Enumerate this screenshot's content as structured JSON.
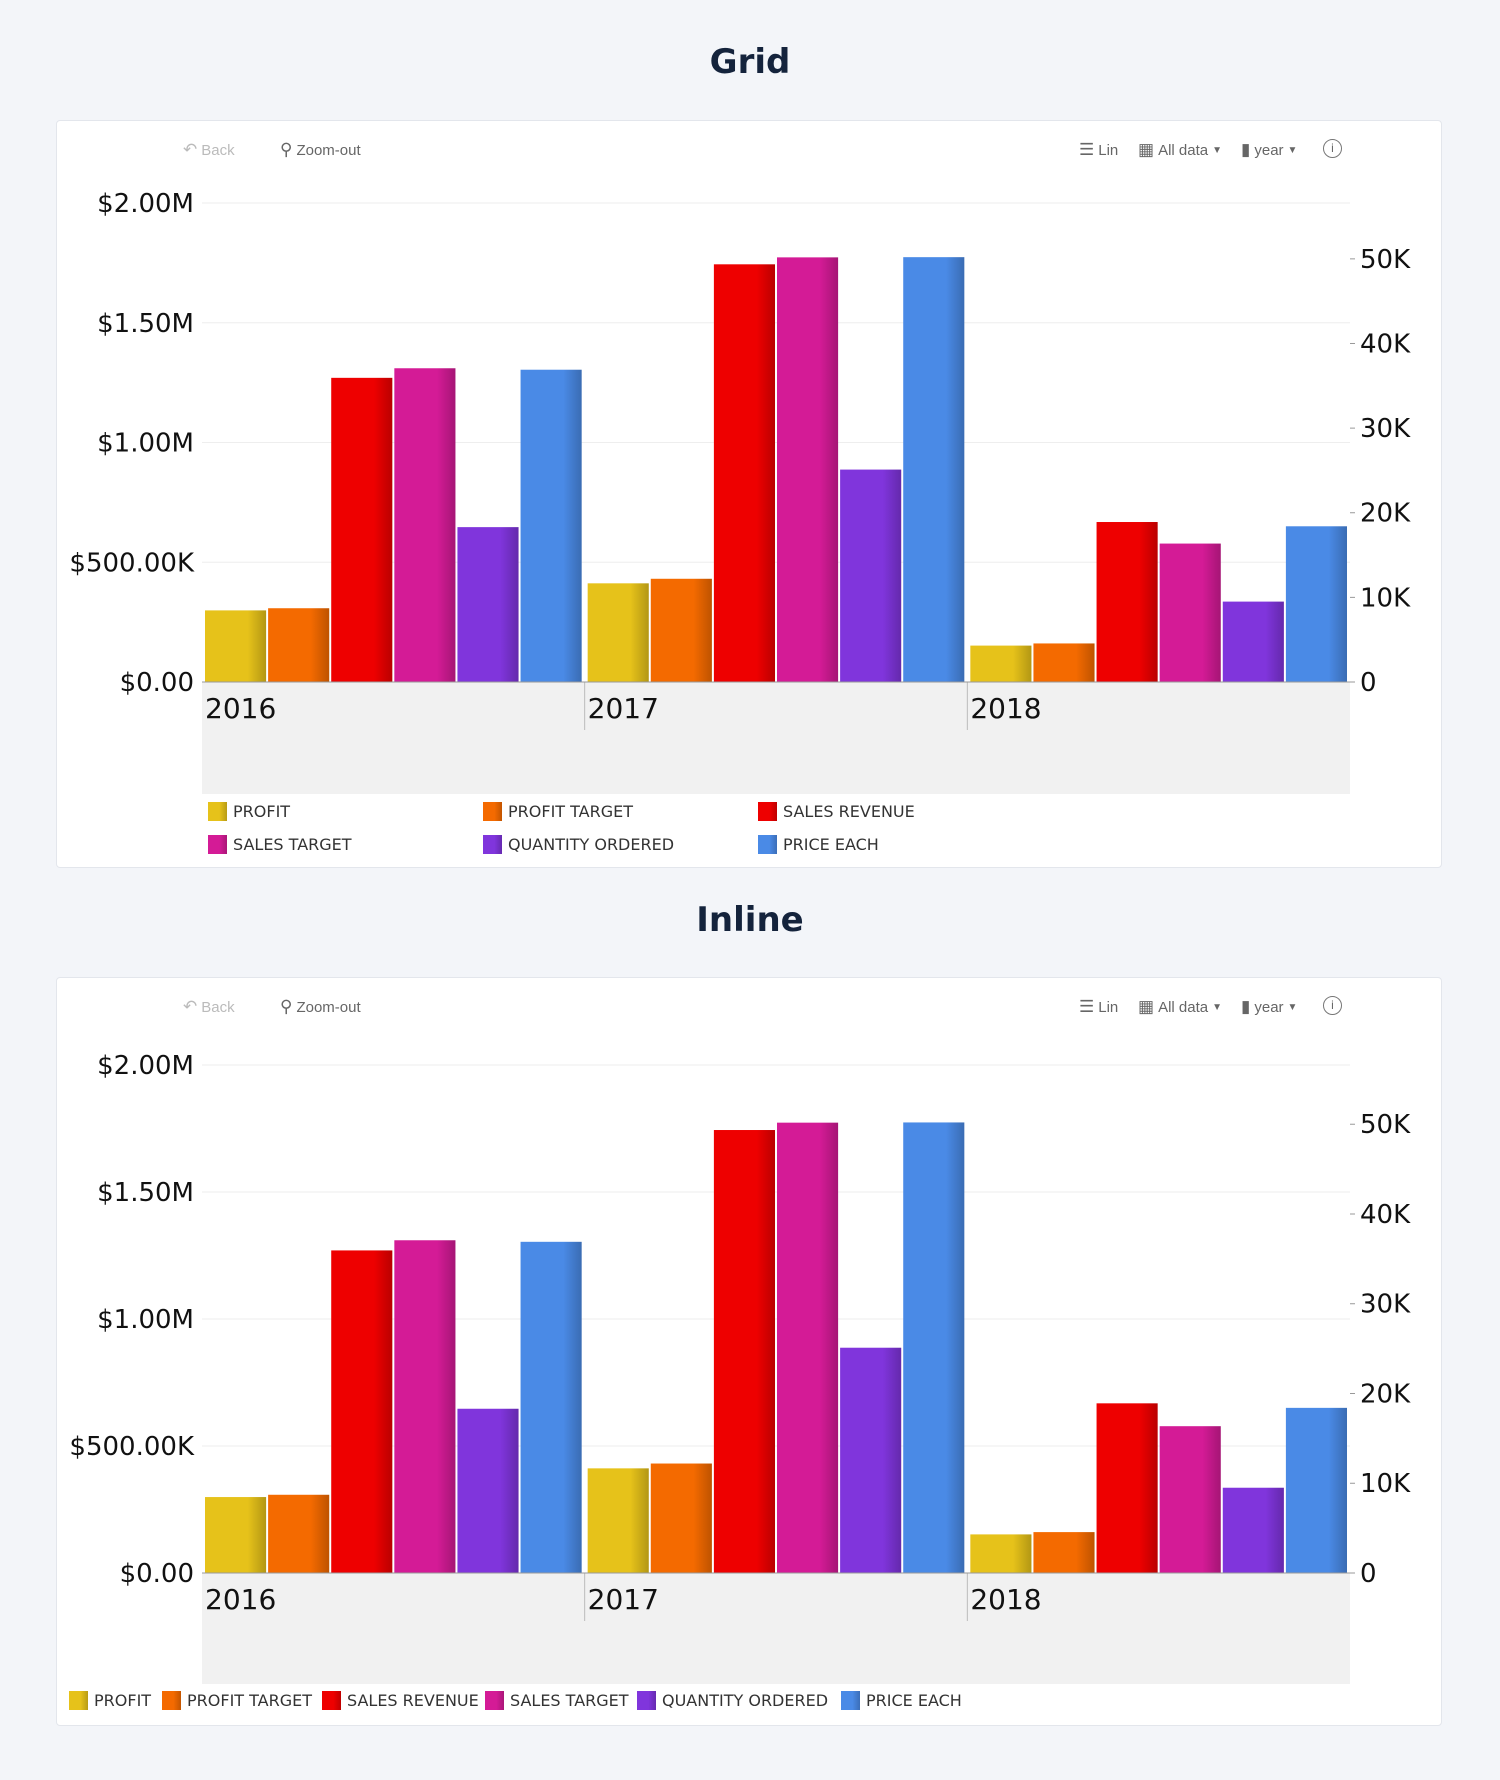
{
  "toolbar": {
    "back": "Back",
    "zoom_out": "Zoom-out",
    "scale": "Lin",
    "range": "All data",
    "period": "year"
  },
  "chart_data": [
    {
      "type": "bar",
      "title": "Grid",
      "legend_layout": "grid",
      "categories": [
        "2016",
        "2017",
        "2018"
      ],
      "y_left": {
        "ticks": [
          "$0.00",
          "$500.00K",
          "$1.00M",
          "$1.50M",
          "$2.00M"
        ],
        "range": [
          0,
          2000000
        ]
      },
      "y_right": {
        "ticks": [
          "0",
          "10K",
          "20K",
          "30K",
          "40K",
          "50K"
        ],
        "range": [
          0,
          56600
        ]
      },
      "grid": true,
      "legend_placement": "bottom",
      "series": [
        {
          "name": "PROFIT",
          "axis": "left",
          "color": "#e6c21a",
          "values": [
            299000,
            412000,
            152000
          ]
        },
        {
          "name": "PROFIT TARGET",
          "axis": "left",
          "color": "#f46a00",
          "values": [
            308000,
            431000,
            161000
          ]
        },
        {
          "name": "SALES REVENUE",
          "axis": "left",
          "color": "#ee0000",
          "values": [
            1270000,
            1744000,
            668000
          ]
        },
        {
          "name": "SALES TARGET",
          "axis": "left",
          "color": "#d41b96",
          "values": [
            1310000,
            1773000,
            578000
          ]
        },
        {
          "name": "QUANTITY ORDERED",
          "axis": "right",
          "color": "#8035dc",
          "values": [
            18300,
            25100,
            9500
          ]
        },
        {
          "name": "PRICE EACH",
          "axis": "right",
          "color": "#4a8ae6",
          "values": [
            36900,
            50200,
            18400
          ]
        }
      ]
    },
    {
      "type": "bar",
      "title": "Inline",
      "legend_layout": "inline",
      "categories": [
        "2016",
        "2017",
        "2018"
      ],
      "y_left": {
        "ticks": [
          "$0.00",
          "$500.00K",
          "$1.00M",
          "$1.50M",
          "$2.00M"
        ],
        "range": [
          0,
          2000000
        ]
      },
      "y_right": {
        "ticks": [
          "0",
          "10K",
          "20K",
          "30K",
          "40K",
          "50K"
        ],
        "range": [
          0,
          56600
        ]
      },
      "grid": true,
      "legend_placement": "bottom",
      "series": [
        {
          "name": "PROFIT",
          "axis": "left",
          "color": "#e6c21a",
          "values": [
            299000,
            412000,
            152000
          ]
        },
        {
          "name": "PROFIT TARGET",
          "axis": "left",
          "color": "#f46a00",
          "values": [
            308000,
            431000,
            161000
          ]
        },
        {
          "name": "SALES REVENUE",
          "axis": "left",
          "color": "#ee0000",
          "values": [
            1270000,
            1744000,
            668000
          ]
        },
        {
          "name": "SALES TARGET",
          "axis": "left",
          "color": "#d41b96",
          "values": [
            1310000,
            1773000,
            578000
          ]
        },
        {
          "name": "QUANTITY ORDERED",
          "axis": "right",
          "color": "#8035dc",
          "values": [
            18300,
            25100,
            9500
          ]
        },
        {
          "name": "PRICE EACH",
          "axis": "right",
          "color": "#4a8ae6",
          "values": [
            36900,
            50200,
            18400
          ]
        }
      ]
    }
  ]
}
